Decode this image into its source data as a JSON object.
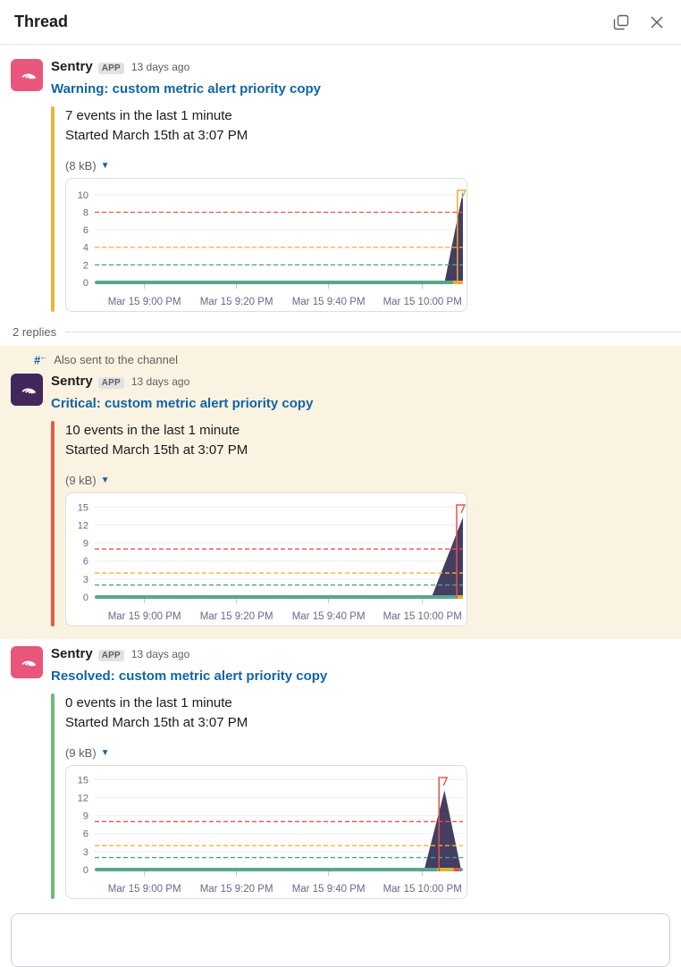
{
  "header": {
    "title": "Thread",
    "popout_icon": "open-in-window-icon",
    "close_icon": "close-icon"
  },
  "thread": {
    "replies_label": "2 replies",
    "also_sent_label": "Also sent to the channel"
  },
  "colors": {
    "link_blue": "#1264A3",
    "highlight_bg": "#FBF3E2",
    "warning_accent": "#EDB33C",
    "critical_accent": "#E55A4B",
    "resolved_accent": "#6CBE77",
    "avatar_pink": "#E8567C",
    "avatar_purple": "#42275C"
  },
  "messages": [
    {
      "sender": "Sentry",
      "badge": "APP",
      "timestamp": "13 days ago",
      "title": "Warning: custom metric alert priority copy",
      "line1": "7 events in the last 1 minute",
      "line2": "Started March 15th at 3:07 PM",
      "attachment_size": "(8 kB)",
      "accent_color": "#EDB33C",
      "avatar_bg": "#E8567C"
    },
    {
      "sender": "Sentry",
      "badge": "APP",
      "timestamp": "13 days ago",
      "title": "Critical: custom metric alert priority copy",
      "line1": "10 events in the last 1 minute",
      "line2": "Started March 15th at 3:07 PM",
      "attachment_size": "(9 kB)",
      "accent_color": "#E55A4B",
      "avatar_bg": "#42275C"
    },
    {
      "sender": "Sentry",
      "badge": "APP",
      "timestamp": "13 days ago",
      "title": "Resolved: custom metric alert priority copy",
      "line1": "0 events in the last 1 minute",
      "line2": "Started March 15th at 3:07 PM",
      "attachment_size": "(9 kB)",
      "accent_color": "#6CBE77",
      "avatar_bg": "#E8567C"
    }
  ],
  "chart_data": [
    {
      "type": "area",
      "title": "",
      "xlabel": "",
      "ylabel": "",
      "x_ticks": [
        "Mar 15 9:00 PM",
        "Mar 15 9:20 PM",
        "Mar 15 9:40 PM",
        "Mar 15 10:00 PM"
      ],
      "x_tick_pos": [
        13.5,
        38.5,
        63.5,
        89
      ],
      "y_ticks": [
        0,
        2,
        4,
        6,
        8,
        10
      ],
      "ylim": [
        0,
        10.8
      ],
      "grid": true,
      "legend": false,
      "thresholds": [
        {
          "name": "critical-threshold",
          "value": 8,
          "color": "#DF5750"
        },
        {
          "name": "warning-threshold",
          "value": 4,
          "color": "#EEB63C"
        },
        {
          "name": "resolved-threshold",
          "value": 2,
          "color": "#4AA28A"
        }
      ],
      "baseline": {
        "value": 0,
        "color": "#57A88A"
      },
      "series": [
        {
          "name": "events",
          "color": "#443E62",
          "points": [
            [
              0,
              0
            ],
            [
              95,
              0
            ],
            [
              100,
              10.4
            ],
            [
              100,
              0
            ]
          ]
        }
      ],
      "incident_line": {
        "pos": 98.5,
        "color": "#EFA939",
        "flag": true
      },
      "bottom_segments": [
        {
          "from": 97.3,
          "to": 100,
          "color": "#EFA939"
        }
      ]
    },
    {
      "type": "area",
      "title": "",
      "xlabel": "",
      "ylabel": "",
      "x_ticks": [
        "Mar 15 9:00 PM",
        "Mar 15 9:20 PM",
        "Mar 15 9:40 PM",
        "Mar 15 10:00 PM"
      ],
      "x_tick_pos": [
        13.5,
        38.5,
        63.5,
        89
      ],
      "y_ticks": [
        0,
        3,
        6,
        9,
        12,
        15
      ],
      "ylim": [
        0,
        15.8
      ],
      "grid": true,
      "legend": false,
      "thresholds": [
        {
          "name": "critical-threshold",
          "value": 8,
          "color": "#DF5750"
        },
        {
          "name": "warning-threshold",
          "value": 4,
          "color": "#EEB63C"
        },
        {
          "name": "resolved-threshold",
          "value": 2,
          "color": "#4AA28A"
        }
      ],
      "baseline": {
        "value": 0,
        "color": "#57A88A"
      },
      "series": [
        {
          "name": "events",
          "color": "#443E62",
          "points": [
            [
              0,
              0
            ],
            [
              91.5,
              0
            ],
            [
              100,
              13.3
            ],
            [
              100,
              0
            ]
          ]
        }
      ],
      "incident_line": {
        "pos": 98.3,
        "color": "#E85348",
        "flag": true
      },
      "bottom_segments": [
        {
          "from": 98.3,
          "to": 100,
          "color": "#D8B63C"
        }
      ]
    },
    {
      "type": "area",
      "title": "",
      "xlabel": "",
      "ylabel": "",
      "x_ticks": [
        "Mar 15 9:00 PM",
        "Mar 15 9:20 PM",
        "Mar 15 9:40 PM",
        "Mar 15 10:00 PM"
      ],
      "x_tick_pos": [
        13.5,
        38.5,
        63.5,
        89
      ],
      "y_ticks": [
        0,
        3,
        6,
        9,
        12,
        15
      ],
      "ylim": [
        0,
        15.8
      ],
      "grid": true,
      "legend": false,
      "thresholds": [
        {
          "name": "critical-threshold",
          "value": 8,
          "color": "#DF5750"
        },
        {
          "name": "warning-threshold",
          "value": 4,
          "color": "#EEB63C"
        },
        {
          "name": "resolved-threshold",
          "value": 2,
          "color": "#4AA28A"
        }
      ],
      "baseline": {
        "value": 0,
        "color": "#57A88A"
      },
      "series": [
        {
          "name": "events",
          "color": "#443E62",
          "points": [
            [
              0,
              0
            ],
            [
              89.5,
              0
            ],
            [
              95,
              13.2
            ],
            [
              99.5,
              0
            ]
          ]
        }
      ],
      "incident_line": {
        "pos": 93.5,
        "color": "#E85348",
        "flag": true
      },
      "bottom_segments": [
        {
          "from": 93,
          "to": 97.5,
          "color": "#D8B63C"
        },
        {
          "from": 97.5,
          "to": 99.3,
          "color": "#DF5750"
        }
      ]
    }
  ]
}
